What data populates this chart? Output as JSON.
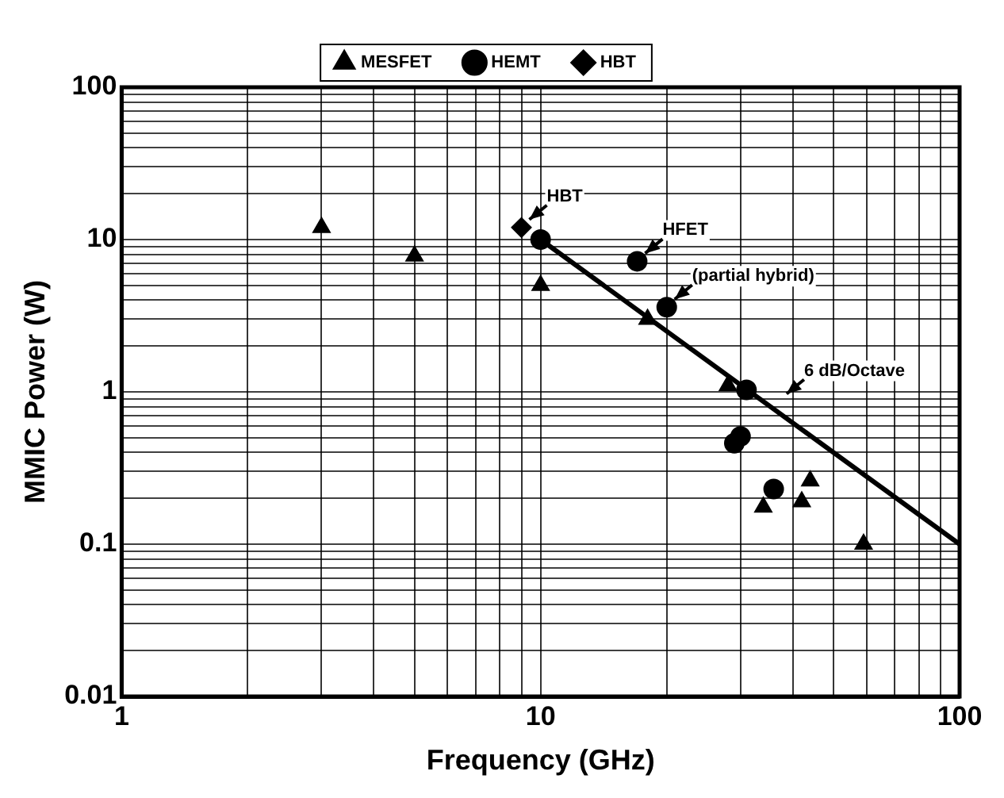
{
  "chart_data": {
    "type": "scatter",
    "xlabel": "Frequency (GHz)",
    "ylabel": "MMIC Power (W)",
    "log": "xy",
    "grid": true,
    "legend": "top",
    "xlim": [
      1,
      100
    ],
    "ylim": [
      0.01,
      100
    ],
    "xticks": [
      1,
      {
        "value": 2,
        "label": null
      },
      {
        "value": 3,
        "label": null
      },
      {
        "value": 4,
        "label": null
      },
      {
        "value": 5,
        "label": null
      },
      {
        "value": 6,
        "label": null
      },
      {
        "value": 7,
        "label": null
      },
      {
        "value": 8,
        "label": null
      },
      {
        "value": 9,
        "label": null
      },
      10,
      {
        "value": 20,
        "label": null
      },
      {
        "value": 30,
        "label": null
      },
      {
        "value": 40,
        "label": null
      },
      {
        "value": 50,
        "label": null
      },
      {
        "value": 60,
        "label": null
      },
      {
        "value": 70,
        "label": null
      },
      {
        "value": 80,
        "label": null
      },
      {
        "value": 90,
        "label": null
      },
      100
    ],
    "yticks": [
      0.01,
      {
        "value": 0.02,
        "label": null
      },
      {
        "value": 0.03,
        "label": null
      },
      {
        "value": 0.04,
        "label": null
      },
      {
        "value": 0.05,
        "label": null
      },
      {
        "value": 0.06,
        "label": null
      },
      {
        "value": 0.07,
        "label": null
      },
      {
        "value": 0.08,
        "label": null
      },
      {
        "value": 0.09,
        "label": null
      },
      0.1,
      {
        "value": 0.2,
        "label": null
      },
      {
        "value": 0.3,
        "label": null
      },
      {
        "value": 0.4,
        "label": null
      },
      {
        "value": 0.5,
        "label": null
      },
      {
        "value": 0.6,
        "label": null
      },
      {
        "value": 0.7,
        "label": null
      },
      {
        "value": 0.8,
        "label": null
      },
      {
        "value": 0.9,
        "label": null
      },
      1,
      {
        "value": 2,
        "label": null
      },
      {
        "value": 3,
        "label": null
      },
      {
        "value": 4,
        "label": null
      },
      {
        "value": 5,
        "label": null
      },
      {
        "value": 6,
        "label": null
      },
      {
        "value": 7,
        "label": null
      },
      {
        "value": 8,
        "label": null
      },
      {
        "value": 9,
        "label": null
      },
      10,
      {
        "value": 20,
        "label": null
      },
      {
        "value": 30,
        "label": null
      },
      {
        "value": 40,
        "label": null
      },
      {
        "value": 50,
        "label": null
      },
      {
        "value": 60,
        "label": null
      },
      {
        "value": 70,
        "label": null
      },
      {
        "value": 80,
        "label": null
      },
      {
        "value": 90,
        "label": null
      },
      100
    ],
    "series": [
      {
        "name": "MESFET",
        "marker": "triangle",
        "color": "#000000",
        "x": [
          3,
          5,
          10,
          18,
          28,
          34,
          42,
          44,
          59
        ],
        "values": [
          12,
          7.8,
          5,
          3,
          1.1,
          0.175,
          0.19,
          0.26,
          0.1
        ]
      },
      {
        "name": "HEMT",
        "marker": "circle",
        "color": "#000000",
        "x": [
          10,
          17,
          20,
          31,
          29,
          30,
          36
        ],
        "values": [
          10,
          7.2,
          3.6,
          1.03,
          0.46,
          0.51,
          0.23
        ]
      },
      {
        "name": "HBT",
        "marker": "diamond",
        "color": "#000000",
        "x": [
          9
        ],
        "values": [
          12
        ]
      },
      {
        "type": "line",
        "marker": "none",
        "color": "#000000",
        "x": [
          10,
          100
        ],
        "values": [
          10,
          0.1
        ]
      }
    ],
    "annotations": [
      {
        "text": "HBT",
        "x": 9,
        "y": 12
      },
      {
        "text": "HFET",
        "x": 17,
        "y": 7.2
      },
      {
        "text": "(partial hybrid)",
        "x": 20,
        "y": 3.6
      },
      {
        "text": "6 dB/Octave",
        "x": 37,
        "y": 0.86
      }
    ]
  }
}
